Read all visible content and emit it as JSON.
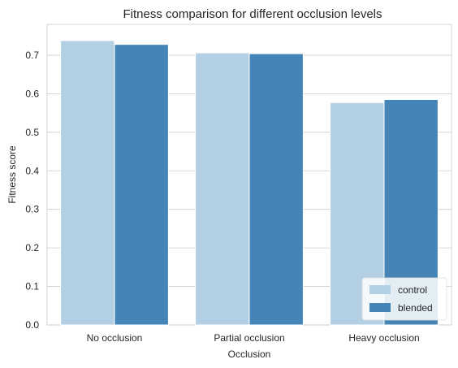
{
  "chart_data": {
    "type": "bar",
    "title": "Fitness comparison for different occlusion levels",
    "xlabel": "Occlusion",
    "ylabel": "Fitness score",
    "categories": [
      "No occlusion",
      "Partial occlusion",
      "Heavy occlusion"
    ],
    "series": [
      {
        "name": "control",
        "values": [
          0.738,
          0.706,
          0.577
        ],
        "color": "#b3cfe3"
      },
      {
        "name": "blended",
        "values": [
          0.728,
          0.704,
          0.585
        ],
        "color": "#4584b6"
      }
    ],
    "ylim": [
      0,
      0.78
    ],
    "yticks": [
      "0.0",
      "0.1",
      "0.2",
      "0.3",
      "0.4",
      "0.5",
      "0.6",
      "0.7"
    ],
    "grid": "horizontal",
    "legend_position": "lower-right"
  }
}
